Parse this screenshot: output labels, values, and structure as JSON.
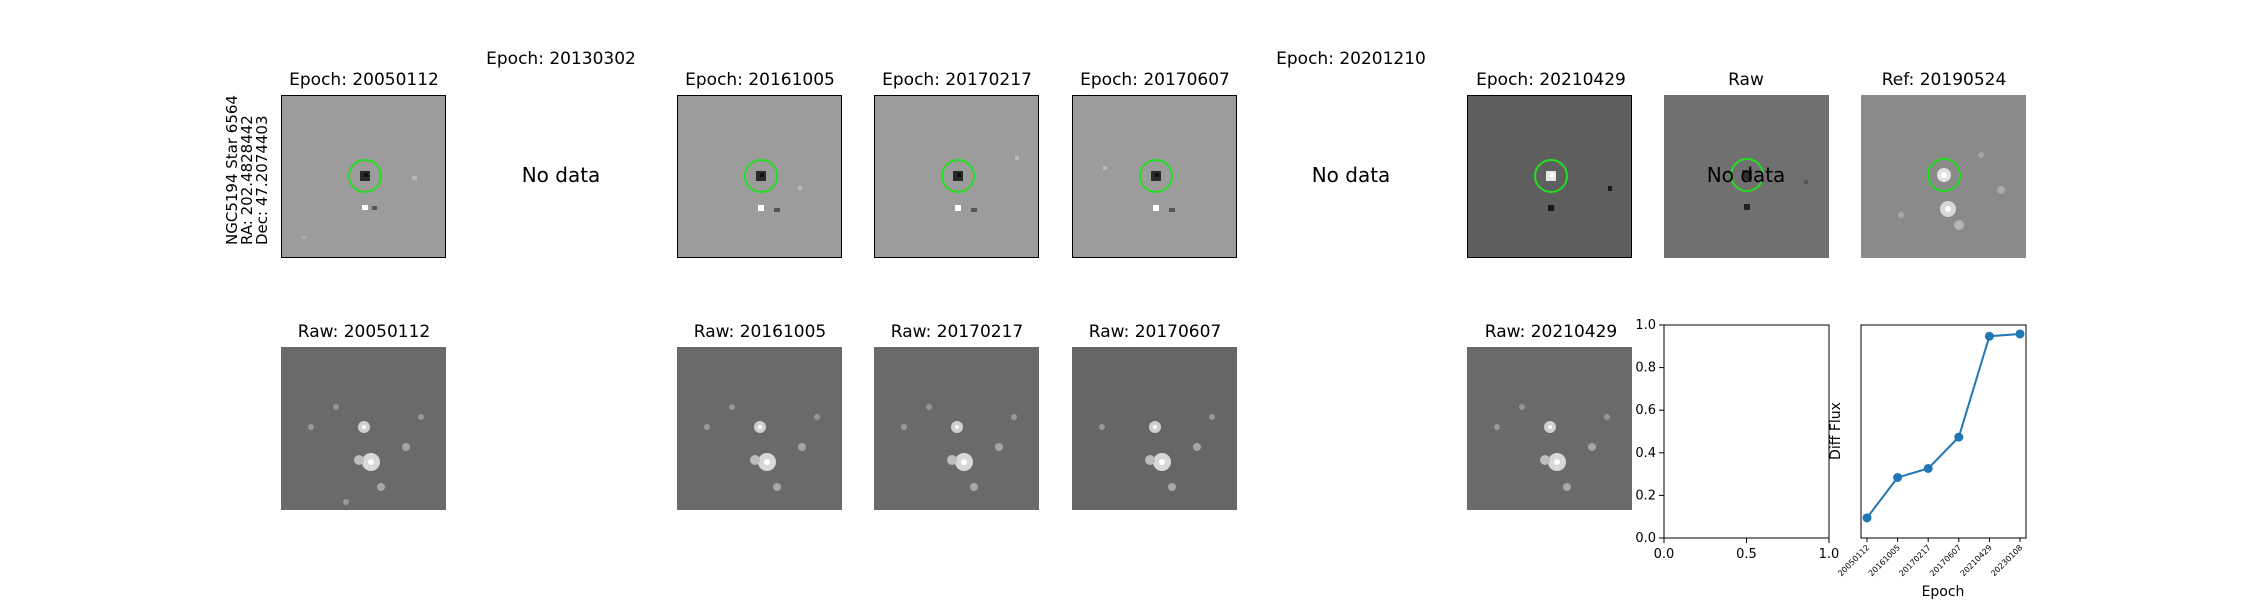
{
  "star": {
    "name": "NGC5194 Star 6564",
    "ra": "RA: 202.4828442",
    "dec": "Dec: 47.2074403"
  },
  "top_row": [
    {
      "title": "Epoch: 20050112",
      "has_data": true
    },
    {
      "title": "Epoch: 20130302",
      "has_data": false,
      "no_data_label": "No data"
    },
    {
      "title": "Epoch: 20161005",
      "has_data": true
    },
    {
      "title": "Epoch: 20170217",
      "has_data": true
    },
    {
      "title": "Epoch: 20170607",
      "has_data": true
    },
    {
      "title": "Epoch: 20201210",
      "has_data": false,
      "no_data_label": "No data"
    },
    {
      "title": "Epoch: 20210429",
      "has_data": true
    },
    {
      "title": "Raw",
      "has_data": true,
      "overlay_label": "No data"
    },
    {
      "title": "Ref: 20190524",
      "has_data": true
    }
  ],
  "bottom_row": [
    {
      "title": "Raw: 20050112"
    },
    {
      "title": "Raw: 20161005"
    },
    {
      "title": "Raw: 20170217"
    },
    {
      "title": "Raw: 20170607"
    },
    {
      "title": "Raw: 20210429"
    }
  ],
  "colors": {
    "circle": "#22dd22",
    "line": "#1f77b4",
    "diff_bg": "#9c9c9c",
    "diff_bg_dark": "#5f5f5f",
    "raw_bg": "#6a6a6a"
  },
  "chart_data": [
    {
      "type": "scatter",
      "title": "",
      "xlabel": "",
      "ylabel": "",
      "xlim": [
        0.0,
        1.0
      ],
      "ylim": [
        0.0,
        1.0
      ],
      "xticks": [
        "0.0",
        "0.5",
        "1.0"
      ],
      "yticks": [
        "0.0",
        "0.2",
        "0.4",
        "0.6",
        "0.8",
        "1.0"
      ],
      "series": []
    },
    {
      "type": "line",
      "title": "",
      "xlabel": "Epoch",
      "ylabel": "Diff Flux",
      "categories": [
        "20050112",
        "20161005",
        "20170217",
        "20170607",
        "20210429",
        "20230108"
      ],
      "values": [
        0.09,
        0.27,
        0.31,
        0.45,
        0.9,
        0.91
      ],
      "ylim": [
        0.0,
        0.95
      ]
    }
  ]
}
